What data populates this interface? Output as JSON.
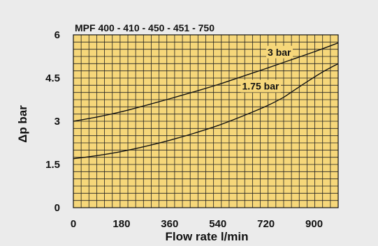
{
  "chart_data": {
    "type": "line",
    "title": "MPF 400 - 410 - 450 - 451 - 750",
    "xlabel": "Flow rate l/min",
    "ylabel": "Δp bar",
    "xlim": [
      0,
      990
    ],
    "ylim": [
      0,
      6
    ],
    "x_ticks": [
      "0",
      "180",
      "360",
      "540",
      "720",
      "900"
    ],
    "y_ticks": [
      "0",
      "1.5",
      "3",
      "4.5",
      "6"
    ],
    "grid": true,
    "colors": {
      "background": "#ebebeb",
      "plot_area": "#f6d77a",
      "grid": "#222222",
      "line": "#111111"
    },
    "series": [
      {
        "name": "3 bar",
        "x": [
          0,
          90,
          180,
          270,
          360,
          450,
          540,
          630,
          720,
          810,
          900,
          990
        ],
        "y": [
          3.0,
          3.15,
          3.33,
          3.55,
          3.78,
          4.02,
          4.27,
          4.55,
          4.83,
          5.12,
          5.41,
          5.72
        ]
      },
      {
        "name": "1.75 bar",
        "x": [
          0,
          90,
          180,
          270,
          360,
          450,
          540,
          630,
          720,
          780,
          810,
          870,
          930,
          990
        ],
        "y": [
          1.7,
          1.81,
          1.95,
          2.13,
          2.34,
          2.58,
          2.85,
          3.17,
          3.52,
          3.8,
          3.98,
          4.35,
          4.7,
          5.0
        ]
      }
    ]
  }
}
